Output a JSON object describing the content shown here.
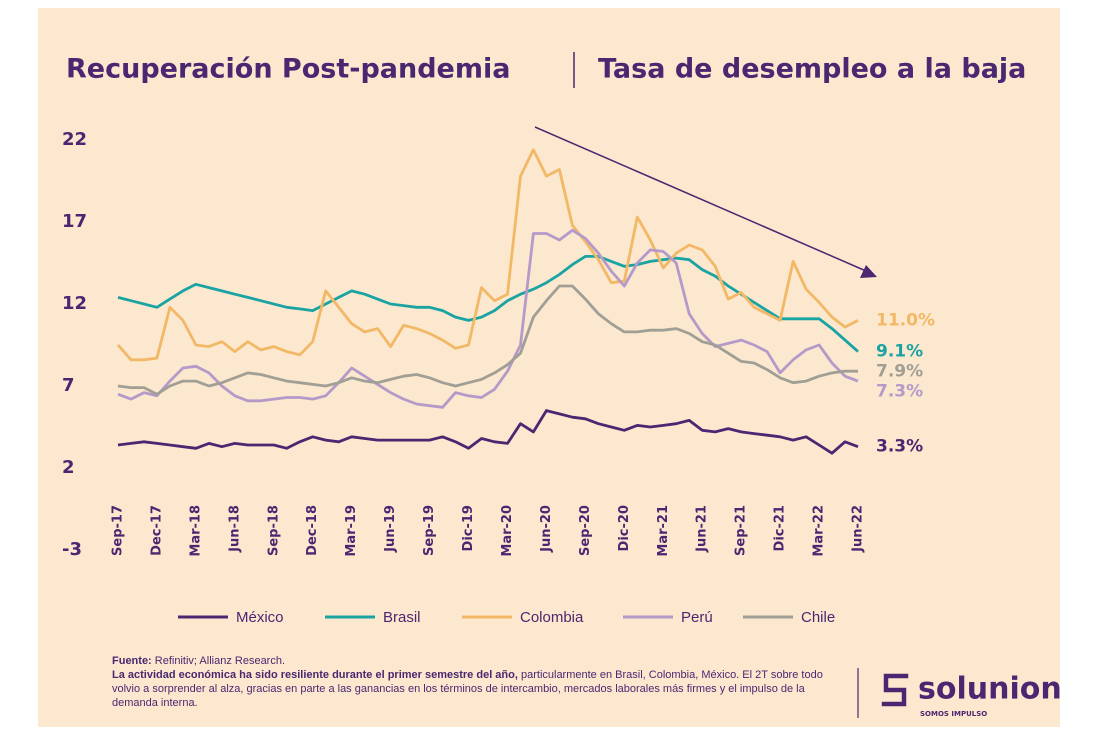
{
  "chart_data": {
    "type": "line",
    "title": "Recuperación Post-pandemia",
    "subtitle": "Tasa de desempleo a la baja",
    "categories": [
      "Sep-17",
      null,
      null,
      "Dec-17",
      null,
      null,
      "Mar-18",
      null,
      null,
      "Jun-18",
      null,
      null,
      "Sep-18",
      null,
      null,
      "Dec-18",
      null,
      null,
      "Mar-19",
      null,
      null,
      "Jun-19",
      null,
      null,
      "Sep-19",
      null,
      null,
      "Dic-19",
      null,
      null,
      "Mar-20",
      null,
      null,
      "Jun-20",
      null,
      null,
      "Sep-20",
      null,
      null,
      "Dic-20",
      null,
      null,
      "Mar-21",
      null,
      null,
      "Jun-21",
      null,
      null,
      "Sep-21",
      null,
      null,
      "Dic-21",
      null,
      null,
      "Mar-22",
      null,
      null,
      "Jun-22"
    ],
    "ylim": [
      -3,
      22
    ],
    "yticks": [
      -3,
      2,
      7,
      12,
      17,
      22
    ],
    "grid": false,
    "series": [
      {
        "name": "México",
        "color": "#4a2770",
        "end_label": "3.3%",
        "values": [
          3.4,
          3.5,
          3.6,
          3.5,
          3.4,
          3.3,
          3.2,
          3.5,
          3.3,
          3.5,
          3.4,
          3.4,
          3.4,
          3.2,
          3.6,
          3.9,
          3.7,
          3.6,
          3.9,
          3.8,
          3.7,
          3.7,
          3.7,
          3.7,
          3.7,
          3.9,
          3.6,
          3.2,
          3.8,
          3.6,
          3.5,
          4.7,
          4.2,
          5.5,
          5.3,
          5.1,
          5.0,
          4.7,
          4.5,
          4.3,
          4.6,
          4.5,
          4.6,
          4.7,
          4.9,
          4.3,
          4.2,
          4.4,
          4.2,
          4.1,
          4.0,
          3.9,
          3.7,
          3.9,
          3.4,
          2.9,
          3.6,
          3.3
        ]
      },
      {
        "name": "Brasil",
        "color": "#1aa3a3",
        "end_label": "9.1%",
        "values": [
          12.4,
          12.2,
          12.0,
          11.8,
          12.3,
          12.8,
          13.2,
          13.0,
          12.8,
          12.6,
          12.4,
          12.2,
          12.0,
          11.8,
          11.7,
          11.6,
          12.0,
          12.4,
          12.8,
          12.6,
          12.3,
          12.0,
          11.9,
          11.8,
          11.8,
          11.6,
          11.2,
          11.0,
          11.2,
          11.6,
          12.2,
          12.6,
          12.9,
          13.3,
          13.8,
          14.4,
          14.9,
          14.9,
          14.6,
          14.3,
          14.4,
          14.6,
          14.7,
          14.8,
          14.7,
          14.1,
          13.7,
          13.1,
          12.6,
          12.1,
          11.6,
          11.1,
          11.1,
          11.1,
          11.1,
          10.5,
          9.8,
          9.1
        ]
      },
      {
        "name": "Colombia",
        "color": "#f2b866",
        "end_label": "11.0%",
        "values": [
          9.5,
          8.6,
          8.6,
          8.7,
          11.8,
          11.0,
          9.5,
          9.4,
          9.7,
          9.1,
          9.7,
          9.2,
          9.4,
          9.1,
          8.9,
          9.7,
          12.8,
          11.8,
          10.8,
          10.3,
          10.5,
          9.4,
          10.7,
          10.5,
          10.2,
          9.8,
          9.3,
          9.5,
          13.0,
          12.2,
          12.6,
          19.8,
          21.4,
          19.8,
          20.2,
          16.8,
          15.8,
          14.7,
          13.3,
          13.4,
          17.3,
          15.9,
          14.2,
          15.1,
          15.6,
          15.3,
          14.3,
          12.3,
          12.7,
          11.8,
          11.4,
          11.0,
          14.6,
          12.9,
          12.1,
          11.2,
          10.6,
          11.0
        ]
      },
      {
        "name": "Perú",
        "color": "#b59ac9",
        "end_label": "7.3%",
        "values": [
          6.5,
          6.2,
          6.6,
          6.4,
          7.3,
          8.1,
          8.2,
          7.8,
          7.0,
          6.4,
          6.1,
          6.1,
          6.2,
          6.3,
          6.3,
          6.2,
          6.4,
          7.2,
          8.1,
          7.6,
          7.1,
          6.6,
          6.2,
          5.9,
          5.8,
          5.7,
          6.6,
          6.4,
          6.3,
          6.8,
          7.9,
          9.5,
          16.3,
          16.3,
          15.9,
          16.5,
          16.0,
          15.1,
          14.0,
          13.1,
          14.5,
          15.3,
          15.2,
          14.5,
          11.4,
          10.2,
          9.4,
          9.6,
          9.8,
          9.5,
          9.1,
          7.8,
          8.6,
          9.2,
          9.5,
          8.4,
          7.6,
          7.3
        ]
      },
      {
        "name": "Chile",
        "color": "#a09f95",
        "end_label": "7.9%",
        "values": [
          7.0,
          6.9,
          6.9,
          6.5,
          7.0,
          7.3,
          7.3,
          7.0,
          7.2,
          7.5,
          7.8,
          7.7,
          7.5,
          7.3,
          7.2,
          7.1,
          7.0,
          7.2,
          7.5,
          7.3,
          7.2,
          7.4,
          7.6,
          7.7,
          7.5,
          7.2,
          7.0,
          7.2,
          7.4,
          7.8,
          8.3,
          9.0,
          11.2,
          12.2,
          13.1,
          13.1,
          12.3,
          11.4,
          10.8,
          10.3,
          10.3,
          10.4,
          10.4,
          10.5,
          10.2,
          9.7,
          9.5,
          9.0,
          8.5,
          8.4,
          8.0,
          7.5,
          7.2,
          7.3,
          7.6,
          7.8,
          7.9,
          7.9
        ]
      }
    ]
  },
  "footer": {
    "source_label": "Fuente:",
    "source": "Refinitiv; Allianz Research.",
    "note_bold": "La actividad económica ha sido resiliente durante el primer semestre del año,",
    "note": "particularmente en Brasil, Colombia, México. El 2T sobre todo volvio a sorprender al alza, gracias en parte a las ganancias en los términos de intercambio, mercados laborales más firmes y el impulso de la demanda interna."
  },
  "logo": {
    "name": "solunion",
    "tagline": "SOMOS IMPULSO"
  }
}
